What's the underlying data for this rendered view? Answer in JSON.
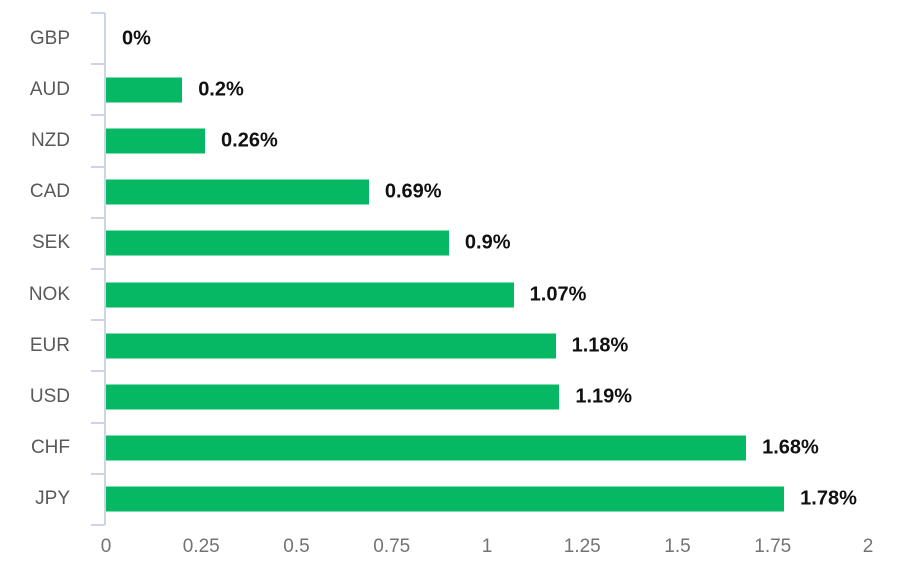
{
  "chart_data": {
    "type": "bar",
    "orientation": "horizontal",
    "title": "",
    "xlabel": "",
    "ylabel": "",
    "categories": [
      "GBP",
      "AUD",
      "NZD",
      "CAD",
      "SEK",
      "NOK",
      "EUR",
      "USD",
      "CHF",
      "JPY"
    ],
    "values": [
      0,
      0.2,
      0.26,
      0.69,
      0.9,
      1.07,
      1.18,
      1.19,
      1.68,
      1.78
    ],
    "data_labels": [
      "0%",
      "0.2%",
      "0.26%",
      "0.69%",
      "0.9%",
      "1.07%",
      "1.18%",
      "1.19%",
      "1.68%",
      "1.78%"
    ],
    "xlim": [
      0,
      2
    ],
    "x_ticks": [
      "0",
      "0.25",
      "0.5",
      "0.75",
      "1",
      "1.25",
      "1.5",
      "1.75",
      "2"
    ],
    "grid": false,
    "legend": false,
    "colors": {
      "bar": "#06b864",
      "axis_line": "#ccd4e8",
      "category_label": "#595959",
      "x_tick_label": "#737373",
      "data_label": "#111111"
    }
  }
}
